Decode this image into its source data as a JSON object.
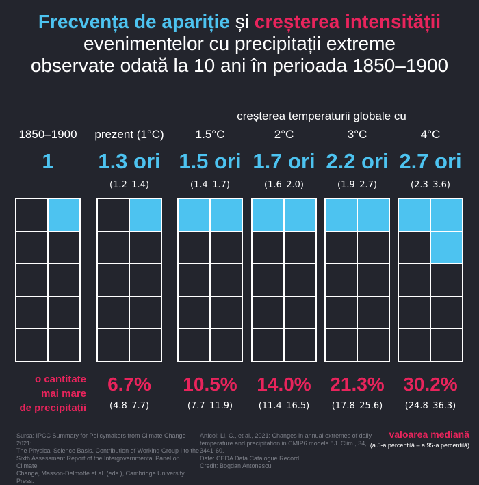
{
  "title": {
    "part1": "Frecvența de apariție",
    "part2": " și ",
    "part3": "creșterea intensității",
    "line2": "evenimentelor cu precipitații extreme",
    "line3": "observate odată la 10 ani în perioada 1850–1900"
  },
  "subheading": "creșterea temperaturii globale cu",
  "intensity_label": {
    "line1": "o cantitate",
    "line2": "mai mare",
    "line3": "de precipitații"
  },
  "legend": {
    "median": "valoarea mediană",
    "percentiles": "(a 5-a percentilă – a 95-a percentilă)"
  },
  "footer": {
    "source_left": [
      "Sursa: IPCC Summary for Policymakers from Climate Change 2021:",
      "The Physical Science Basis. Contribution of Working Group I to the",
      "Sixth Assessment Report of the Intergovernmental Panel on Climate",
      "Change, Masson-Delmotte et al. (eds.), Cambridge University Press."
    ],
    "source_right": [
      "Articol:  Li, C., et al., 2021: Changes in annual extremes of daily",
      "temperature and precipitation in CMIP6 models.\" J. Clim., 34, 3441-60.",
      "Date: CEDA Data Catalogue Record",
      "Credit: Bogdan Antonescu"
    ]
  },
  "colors": {
    "background": "#23252d",
    "frequency": "#4dc3f0",
    "intensity": "#e8245c"
  },
  "chart_data": {
    "type": "table",
    "columns": [
      {
        "label": "1850–1900",
        "frequency": "1",
        "frequency_value": 1.0,
        "frequency_range": "",
        "filled_cells": 1,
        "intensity": "",
        "intensity_range": ""
      },
      {
        "label": "prezent (1°C)",
        "frequency": "1.3 ori",
        "frequency_value": 1.3,
        "frequency_range": "(1.2–1.4)",
        "filled_cells": 1,
        "intensity": "6.7%",
        "intensity_range": "(4.8–7.7)"
      },
      {
        "label": "1.5°C",
        "frequency": "1.5 ori",
        "frequency_value": 1.5,
        "frequency_range": "(1.4–1.7)",
        "filled_cells": 2,
        "intensity": "10.5%",
        "intensity_range": "(7.7–11.9)"
      },
      {
        "label": "2°C",
        "frequency": "1.7 ori",
        "frequency_value": 1.7,
        "frequency_range": "(1.6–2.0)",
        "filled_cells": 2,
        "intensity": "14.0%",
        "intensity_range": "(11.4–16.5)"
      },
      {
        "label": "3°C",
        "frequency": "2.2 ori",
        "frequency_value": 2.2,
        "frequency_range": "(1.9–2.7)",
        "filled_cells": 2,
        "intensity": "21.3%",
        "intensity_range": "(17.8–25.6)"
      },
      {
        "label": "4°C",
        "frequency": "2.7 ori",
        "frequency_value": 2.7,
        "frequency_range": "(2.3–3.6)",
        "filled_cells": 3,
        "intensity": "30.2%",
        "intensity_range": "(24.8–36.3)"
      }
    ],
    "grid_cells": 10
  }
}
